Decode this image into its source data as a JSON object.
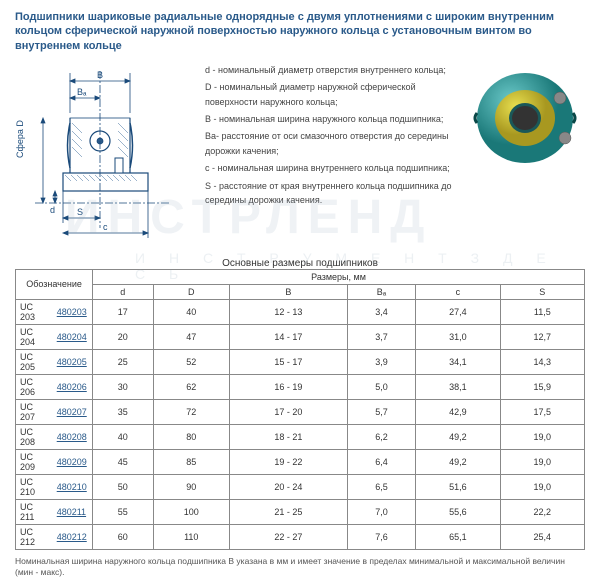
{
  "title": "Подшипники шариковые радиальные однорядные с двумя уплотнениями с широким внутренним кольцом сферической наружной поверхностью наружного кольца с установочным винтом во внутреннем кольце",
  "diagram": {
    "labels": {
      "B": "B",
      "Ba": "Bₐ",
      "D": "Сфера D",
      "d": "d",
      "S": "S",
      "c": "c"
    },
    "colors": {
      "line": "#1a4a7a",
      "fill": "#ffffff",
      "hatch": "#3a6a9a",
      "ball": "#2a5a8a"
    }
  },
  "render": {
    "colors": {
      "outer": "#3aa8a8",
      "inner": "#d4cc3a",
      "shadow": "#1a6868",
      "ball": "#888"
    }
  },
  "definitions": [
    "d - номинальный диаметр отверстия внутреннего кольца;",
    "D - номинальный диаметр наружной сферической поверхности наружного кольца;",
    "B - номинальная ширина наружного кольца подшипника;",
    "Ba- расстояние от оси смазочного отверстия до середины дорожки качения;",
    "c - номинальная ширина внутреннего кольца подшипника;",
    "S - расстояние от края внутреннего кольца подшипника до середины дорожки качения."
  ],
  "table": {
    "title": "Основные размеры подшипников",
    "header_group": "Размеры, мм",
    "header_oboz": "Обозначение",
    "columns": [
      "d",
      "D",
      "B",
      "Bₐ",
      "c",
      "S"
    ],
    "rows": [
      {
        "name": "UC 203",
        "link": "480203",
        "vals": [
          "17",
          "40",
          "12 - 13",
          "3,4",
          "27,4",
          "11,5"
        ]
      },
      {
        "name": "UC 204",
        "link": "480204",
        "vals": [
          "20",
          "47",
          "14 - 17",
          "3,7",
          "31,0",
          "12,7"
        ]
      },
      {
        "name": "UC 205",
        "link": "480205",
        "vals": [
          "25",
          "52",
          "15 - 17",
          "3,9",
          "34,1",
          "14,3"
        ]
      },
      {
        "name": "UC 206",
        "link": "480206",
        "vals": [
          "30",
          "62",
          "16 - 19",
          "5,0",
          "38,1",
          "15,9"
        ]
      },
      {
        "name": "UC 207",
        "link": "480207",
        "vals": [
          "35",
          "72",
          "17 - 20",
          "5,7",
          "42,9",
          "17,5"
        ]
      },
      {
        "name": "UC 208",
        "link": "480208",
        "vals": [
          "40",
          "80",
          "18 - 21",
          "6,2",
          "49,2",
          "19,0"
        ]
      },
      {
        "name": "UC 209",
        "link": "480209",
        "vals": [
          "45",
          "85",
          "19 - 22",
          "6,4",
          "49,2",
          "19,0"
        ]
      },
      {
        "name": "UC 210",
        "link": "480210",
        "vals": [
          "50",
          "90",
          "20 - 24",
          "6,5",
          "51,6",
          "19,0"
        ]
      },
      {
        "name": "UC 211",
        "link": "480211",
        "vals": [
          "55",
          "100",
          "21 - 25",
          "7,0",
          "55,6",
          "22,2"
        ]
      },
      {
        "name": "UC 212",
        "link": "480212",
        "vals": [
          "60",
          "110",
          "22 - 27",
          "7,6",
          "65,1",
          "25,4"
        ]
      }
    ]
  },
  "footnote": "Номинальная ширина наружного кольца подшипника B указана в мм и имеет значение в пределах минимальной и максимальной величин (мин - макс).",
  "watermark": {
    "main": "ИНСТРЛЕНД",
    "sub": "И Н С Т Р У М Е Н Т   З Д Е С Ь"
  }
}
